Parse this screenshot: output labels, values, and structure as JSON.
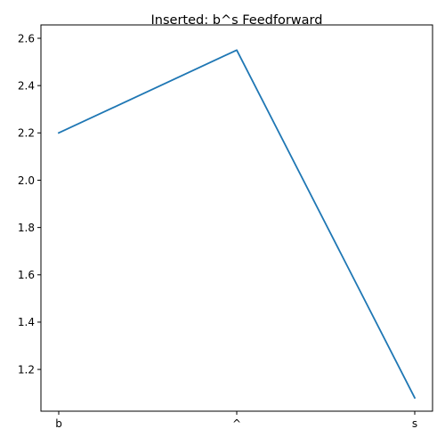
{
  "chart_data": {
    "type": "line",
    "title": "Inserted: b^s    Feedforward",
    "xlabel": "",
    "ylabel": "",
    "categories": [
      "b",
      "^",
      "s"
    ],
    "series": [
      {
        "values": [
          2.2,
          2.55,
          1.08
        ],
        "color": "#1f77b4"
      }
    ],
    "ylim": [
      1.0235,
      2.6565
    ],
    "yticks": [
      1.2,
      1.4,
      1.6,
      1.8,
      2.0,
      2.2,
      2.4,
      2.6
    ],
    "ytick_labels": [
      "1.2",
      "1.4",
      "1.6",
      "1.8",
      "2.0",
      "2.2",
      "2.4",
      "2.6"
    ],
    "grid": false,
    "legend": "none"
  }
}
